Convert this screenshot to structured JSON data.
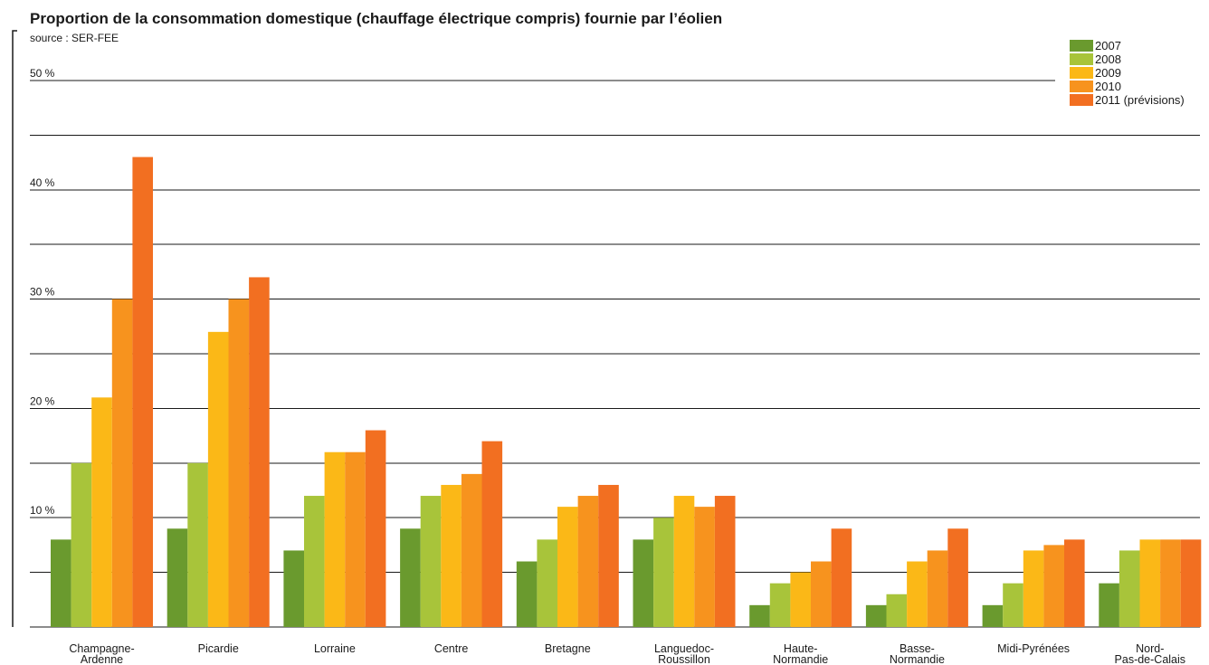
{
  "chart_data": {
    "type": "bar",
    "title": "Proportion de la consommation domestique (chauffage électrique compris) fournie par l’éolien",
    "subtitle": "source : SER-FEE",
    "xlabel": "",
    "ylabel": "",
    "ylim": [
      0,
      50
    ],
    "grid": true,
    "gridlines": [
      0,
      5,
      10,
      15,
      20,
      25,
      30,
      35,
      40,
      45,
      50
    ],
    "tick_labels": [
      {
        "value": 10,
        "label": "10 %"
      },
      {
        "value": 20,
        "label": "20 %"
      },
      {
        "value": 30,
        "label": "30 %"
      },
      {
        "value": 40,
        "label": "40 %"
      },
      {
        "value": 50,
        "label": "50 %"
      }
    ],
    "legend_position": "top-right",
    "categories": [
      [
        "Champagne-",
        "Ardenne"
      ],
      [
        "Picardie"
      ],
      [
        "Lorraine"
      ],
      [
        "Centre"
      ],
      [
        "Bretagne"
      ],
      [
        "Languedoc-",
        "Roussillon"
      ],
      [
        "Haute-",
        "Normandie"
      ],
      [
        "Basse-",
        "Normandie"
      ],
      [
        "Midi-Pyrénées"
      ],
      [
        "Nord-",
        "Pas-de-Calais"
      ]
    ],
    "series": [
      {
        "name": "2007",
        "color": "#6a9a2e",
        "values": [
          8,
          9,
          7,
          9,
          6,
          8,
          2,
          2,
          2,
          4
        ]
      },
      {
        "name": "2008",
        "color": "#a8c43a",
        "values": [
          15,
          15,
          12,
          12,
          8,
          10,
          4,
          3,
          4,
          7
        ]
      },
      {
        "name": "2009",
        "color": "#fbb817",
        "values": [
          21,
          27,
          16,
          13,
          11,
          12,
          5,
          6,
          7,
          8
        ]
      },
      {
        "name": "2010",
        "color": "#f7931e",
        "values": [
          30,
          30,
          16,
          14,
          12,
          11,
          6,
          7,
          7.5,
          8
        ]
      },
      {
        "name": "2011 (prévisions)",
        "color": "#f26f21",
        "values": [
          43,
          32,
          18,
          17,
          13,
          12,
          9,
          9,
          8,
          8
        ]
      }
    ]
  }
}
